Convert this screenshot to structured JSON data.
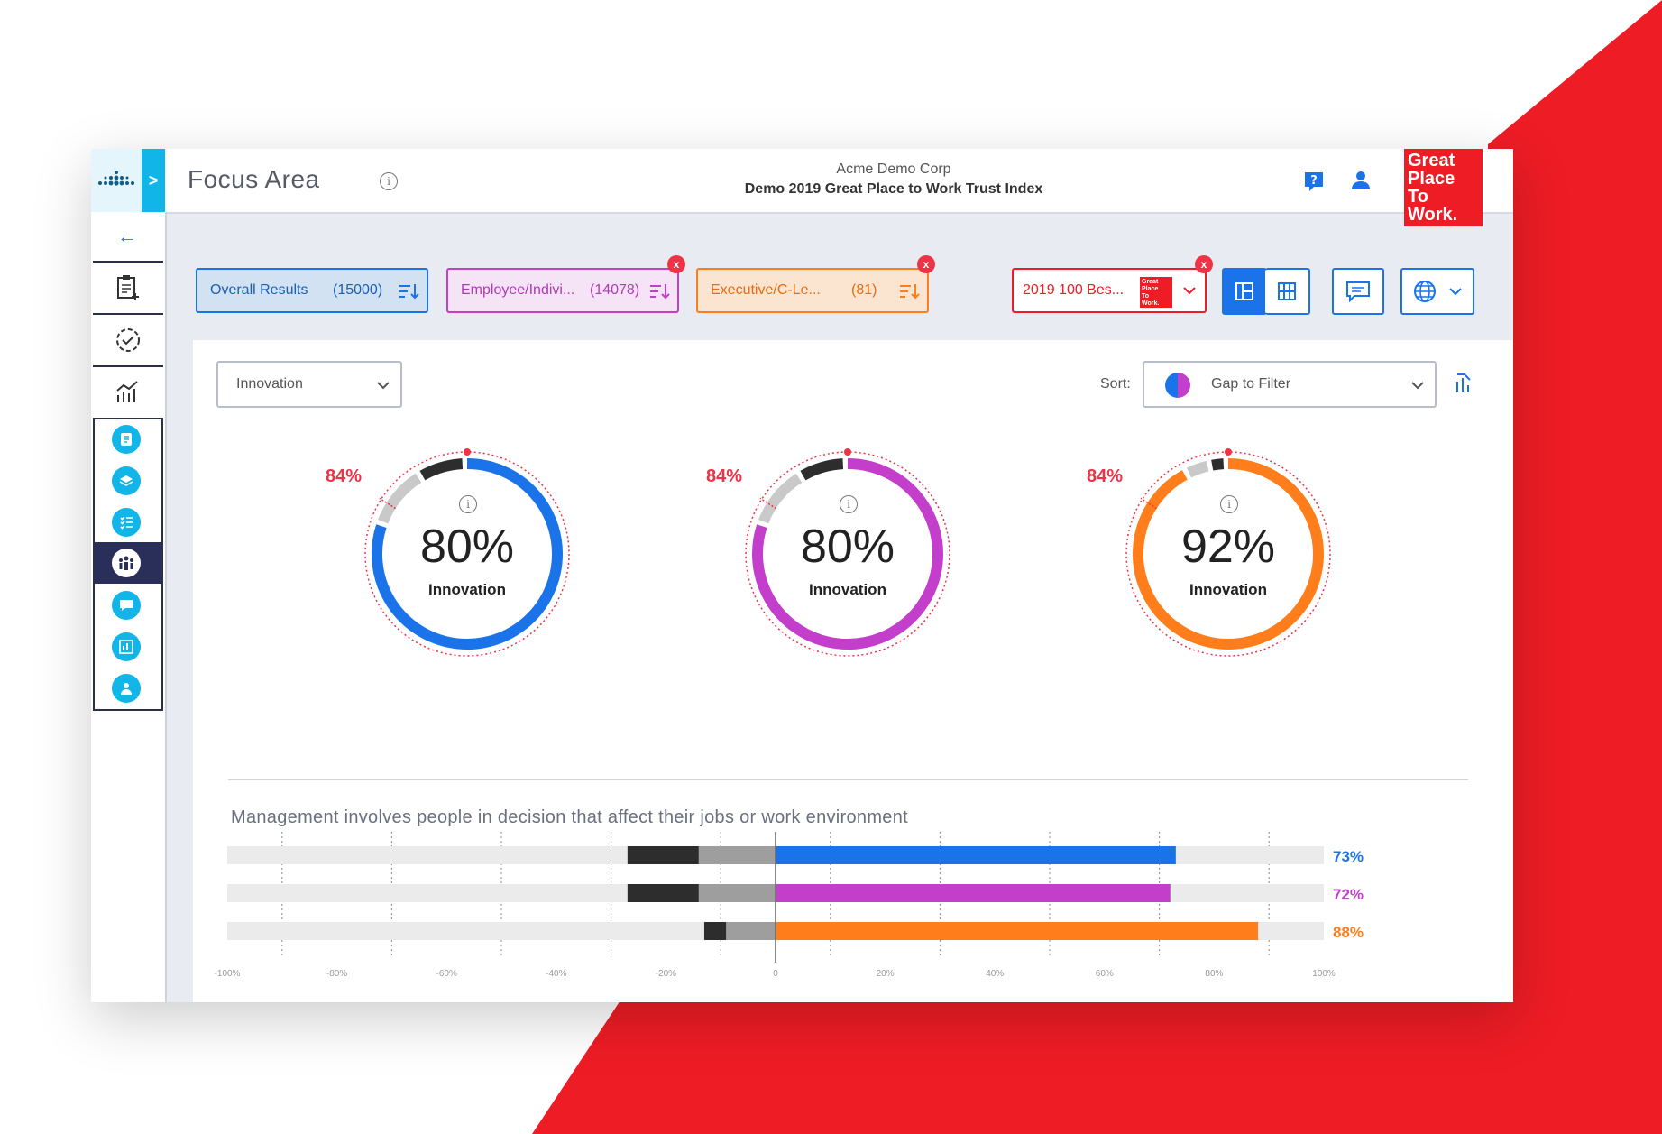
{
  "colors": {
    "blue": "#1a73e8",
    "purple": "#c23ecb",
    "orange": "#ff7d1a",
    "red": "#ee1c25",
    "dark": "#2d2d2d",
    "grey": "#c9c9c9"
  },
  "header": {
    "title": "Focus Area",
    "info": "i",
    "company": "Acme Demo Corp",
    "survey": "Demo 2019 Great Place to Work Trust Index",
    "help_icon": "help-icon",
    "user_icon": "user-icon",
    "logo_lines": [
      "Great",
      "Place",
      "To",
      "Work."
    ]
  },
  "sidebar": {
    "expand_label": ">",
    "back_label": "←",
    "items": [
      "survey-add",
      "check-circle",
      "chart",
      "doc",
      "layers",
      "checklist",
      "people",
      "chat",
      "board",
      "person"
    ]
  },
  "filters": [
    {
      "label": "Overall Results",
      "count": "(15000)",
      "color": "blue",
      "removable": false
    },
    {
      "label": "Employee/Indivi...",
      "count": "(14078)",
      "color": "purple",
      "removable": true
    },
    {
      "label": "Executive/C-Le...",
      "count": "(81)",
      "color": "orange",
      "removable": true
    }
  ],
  "benchmark": {
    "label": "2019 100 Bes...",
    "logo_lines": [
      "Great",
      "Place",
      "To",
      "Work."
    ],
    "remove": "x"
  },
  "remove_label": "x",
  "controls": {
    "category_select": "Innovation",
    "sort_label": "Sort:",
    "sort_value": "Gap to Filter"
  },
  "donuts": [
    {
      "value": "80%",
      "label": "Innovation",
      "bench": "84%",
      "pct": 80,
      "color": "blue"
    },
    {
      "value": "80%",
      "label": "Innovation",
      "bench": "84%",
      "pct": 80,
      "color": "purple"
    },
    {
      "value": "92%",
      "label": "Innovation",
      "bench": "84%",
      "pct": 92,
      "color": "orange"
    }
  ],
  "chart_data": {
    "type": "bar",
    "title": "Management involves people in decision that affect their jobs or work environment",
    "xlim": [
      -100,
      100
    ],
    "ticks": [
      "-100%",
      "-80%",
      "-60%",
      "-40%",
      "-20%",
      "0",
      "20%",
      "40%",
      "60%",
      "80%",
      "100%"
    ],
    "series": [
      {
        "name": "Overall Results",
        "positive": 73,
        "neutral": -14,
        "negative": -13,
        "label": "73%",
        "color": "blue"
      },
      {
        "name": "Employee/Individual",
        "positive": 72,
        "neutral": -14,
        "negative": -13,
        "label": "72%",
        "color": "purple"
      },
      {
        "name": "Executive/C-Level",
        "positive": 88,
        "neutral": -9,
        "negative": -4,
        "label": "88%",
        "color": "orange"
      }
    ]
  }
}
